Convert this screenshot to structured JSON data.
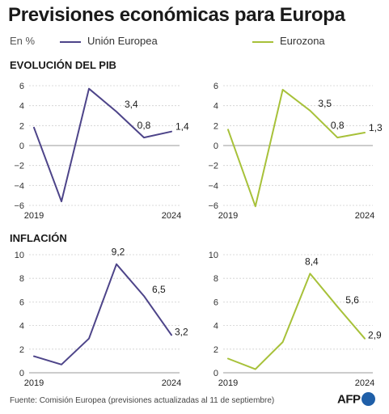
{
  "title": "Previsiones económicas para Europa",
  "units": "En %",
  "legend": [
    {
      "name": "Unión Europea",
      "color": "#4d4489"
    },
    {
      "name": "Eurozona",
      "color": "#a7c139"
    }
  ],
  "sections": {
    "pib": "EVOLUCIÓN DEL PIB",
    "inflation": "INFLACIÓN"
  },
  "source": "Fuente: Comisión Europea (previsiones actualizadas al 11 de septiembre)",
  "logo_text": "AFP",
  "chart_data": [
    {
      "type": "line",
      "section": "pib",
      "series_name": "Unión Europea",
      "color": "#4d4489",
      "x": [
        2019,
        2020,
        2021,
        2022,
        2023,
        2024
      ],
      "values": [
        1.8,
        -5.6,
        5.7,
        3.4,
        0.8,
        1.4
      ],
      "labels": [
        "",
        "",
        "",
        "3,4",
        "0,8",
        "1,4"
      ],
      "ylim": [
        -6,
        6
      ],
      "yticks": [
        -6,
        -4,
        -2,
        0,
        2,
        4,
        6
      ],
      "ytick_labels": [
        "−6",
        "−4",
        "−2",
        "0",
        "2",
        "4",
        "6"
      ],
      "xtick_labels": [
        "2019",
        "2024"
      ],
      "grid": "horizontal dashed"
    },
    {
      "type": "line",
      "section": "pib",
      "series_name": "Eurozona",
      "color": "#a7c139",
      "x": [
        2019,
        2020,
        2021,
        2022,
        2023,
        2024
      ],
      "values": [
        1.6,
        -6.1,
        5.6,
        3.5,
        0.8,
        1.3
      ],
      "labels": [
        "",
        "",
        "",
        "3,5",
        "0,8",
        "1,3"
      ],
      "ylim": [
        -6,
        6
      ],
      "yticks": [
        -6,
        -4,
        -2,
        0,
        2,
        4,
        6
      ],
      "ytick_labels": [
        "−6",
        "−4",
        "−2",
        "0",
        "2",
        "4",
        "6"
      ],
      "xtick_labels": [
        "2019",
        "2024"
      ],
      "grid": "horizontal dashed"
    },
    {
      "type": "line",
      "section": "inflation",
      "series_name": "Unión Europea",
      "color": "#4d4489",
      "x": [
        2019,
        2020,
        2021,
        2022,
        2023,
        2024
      ],
      "values": [
        1.4,
        0.7,
        2.9,
        9.2,
        6.5,
        3.2
      ],
      "labels": [
        "",
        "",
        "",
        "9,2",
        "6,5",
        "3,2"
      ],
      "ylim": [
        0,
        10
      ],
      "yticks": [
        0,
        2,
        4,
        6,
        8,
        10
      ],
      "ytick_labels": [
        "0",
        "2",
        "4",
        "6",
        "8",
        "10"
      ],
      "xtick_labels": [
        "2019",
        "2024"
      ],
      "grid": "horizontal dashed"
    },
    {
      "type": "line",
      "section": "inflation",
      "series_name": "Eurozona",
      "color": "#a7c139",
      "x": [
        2019,
        2020,
        2021,
        2022,
        2023,
        2024
      ],
      "values": [
        1.2,
        0.3,
        2.6,
        8.4,
        5.6,
        2.9
      ],
      "labels": [
        "",
        "",
        "",
        "8,4",
        "5,6",
        "2,9"
      ],
      "ylim": [
        0,
        10
      ],
      "yticks": [
        0,
        2,
        4,
        6,
        8,
        10
      ],
      "ytick_labels": [
        "0",
        "2",
        "4",
        "6",
        "8",
        "10"
      ],
      "xtick_labels": [
        "2019",
        "2024"
      ],
      "grid": "horizontal dashed"
    }
  ]
}
